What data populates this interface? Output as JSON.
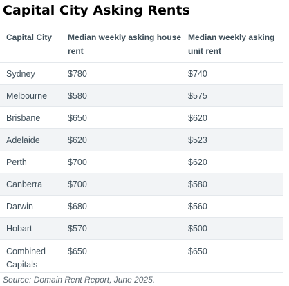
{
  "title": "Capital City Asking Rents",
  "table": {
    "headers": {
      "city": "Capital City",
      "house": "Median weekly asking house rent",
      "unit": "Median weekly asking unit rent"
    },
    "rows": [
      {
        "city": "Sydney",
        "house": "$780",
        "unit": "$740"
      },
      {
        "city": "Melbourne",
        "house": "$580",
        "unit": "$575"
      },
      {
        "city": "Brisbane",
        "house": "$650",
        "unit": "$620"
      },
      {
        "city": "Adelaide",
        "house": "$620",
        "unit": "$523"
      },
      {
        "city": "Perth",
        "house": "$700",
        "unit": "$620"
      },
      {
        "city": "Canberra",
        "house": "$700",
        "unit": "$580"
      },
      {
        "city": "Darwin",
        "house": "$680",
        "unit": "$560"
      },
      {
        "city": "Hobart",
        "house": "$570",
        "unit": "$500"
      },
      {
        "city": "Combined Capitals",
        "house": "$650",
        "unit": "$650"
      }
    ]
  },
  "source": "Source: Domain Rent Report, June 2025."
}
